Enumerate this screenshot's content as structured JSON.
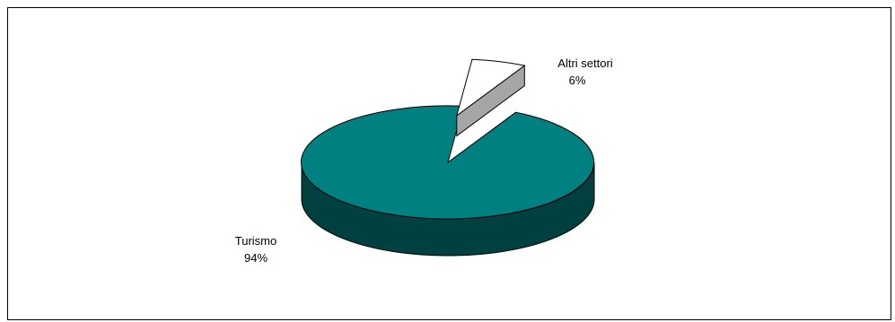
{
  "chart_data": {
    "type": "pie",
    "style": "3d-exploded",
    "slices": [
      {
        "label": "Turismo",
        "pct_label": "94%",
        "value": 94
      },
      {
        "label": "Altri settori",
        "pct_label": "6%",
        "value": 6
      }
    ],
    "colors": {
      "turismo_top": "#008080",
      "turismo_side": "#004040",
      "altri_top": "#ffffff",
      "altri_side": "#a6a6a6",
      "outline": "#000000"
    },
    "legend": "none"
  }
}
